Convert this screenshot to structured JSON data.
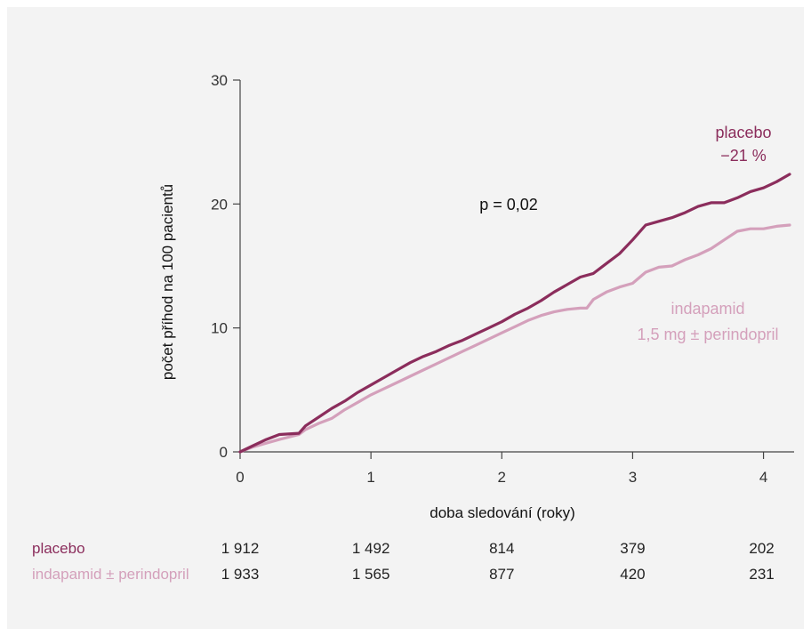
{
  "chart_data": {
    "type": "line",
    "xlabel": "doba sledování (roky)",
    "ylabel": "počet příhod na 100 pacientů",
    "xlim": [
      0,
      4.2
    ],
    "ylim": [
      0,
      30
    ],
    "xticks": [
      "0",
      "1",
      "2",
      "3",
      "4"
    ],
    "yticks": [
      "0",
      "10",
      "20",
      "30"
    ],
    "grid": false,
    "annotation_p": "p = 0,02",
    "series": [
      {
        "name": "placebo",
        "label_line2": "−21 %",
        "color": "#8b2d5c",
        "points": [
          [
            0,
            0
          ],
          [
            0.1,
            0.5
          ],
          [
            0.2,
            1.0
          ],
          [
            0.3,
            1.4
          ],
          [
            0.45,
            1.5
          ],
          [
            0.5,
            2.1
          ],
          [
            0.6,
            2.8
          ],
          [
            0.7,
            3.5
          ],
          [
            0.8,
            4.1
          ],
          [
            0.9,
            4.8
          ],
          [
            1.0,
            5.4
          ],
          [
            1.1,
            6.0
          ],
          [
            1.2,
            6.6
          ],
          [
            1.3,
            7.2
          ],
          [
            1.4,
            7.7
          ],
          [
            1.5,
            8.1
          ],
          [
            1.6,
            8.6
          ],
          [
            1.7,
            9.0
          ],
          [
            1.8,
            9.5
          ],
          [
            1.9,
            10.0
          ],
          [
            2.0,
            10.5
          ],
          [
            2.1,
            11.1
          ],
          [
            2.2,
            11.6
          ],
          [
            2.3,
            12.2
          ],
          [
            2.4,
            12.9
          ],
          [
            2.5,
            13.5
          ],
          [
            2.6,
            14.1
          ],
          [
            2.7,
            14.4
          ],
          [
            2.8,
            15.2
          ],
          [
            2.9,
            16.0
          ],
          [
            3.0,
            17.1
          ],
          [
            3.1,
            18.3
          ],
          [
            3.2,
            18.6
          ],
          [
            3.3,
            18.9
          ],
          [
            3.4,
            19.3
          ],
          [
            3.5,
            19.8
          ],
          [
            3.6,
            20.1
          ],
          [
            3.7,
            20.1
          ],
          [
            3.8,
            20.5
          ],
          [
            3.9,
            21.0
          ],
          [
            4.0,
            21.3
          ],
          [
            4.1,
            21.8
          ],
          [
            4.2,
            22.4
          ]
        ]
      },
      {
        "name": "indapamid",
        "label_line2": "1,5 mg ± perindopril",
        "color": "#d4a0bb",
        "points": [
          [
            0,
            0
          ],
          [
            0.1,
            0.4
          ],
          [
            0.2,
            0.7
          ],
          [
            0.3,
            1.0
          ],
          [
            0.45,
            1.4
          ],
          [
            0.5,
            1.8
          ],
          [
            0.6,
            2.3
          ],
          [
            0.7,
            2.7
          ],
          [
            0.8,
            3.4
          ],
          [
            0.9,
            4.0
          ],
          [
            1.0,
            4.6
          ],
          [
            1.1,
            5.1
          ],
          [
            1.2,
            5.6
          ],
          [
            1.3,
            6.1
          ],
          [
            1.4,
            6.6
          ],
          [
            1.5,
            7.1
          ],
          [
            1.6,
            7.6
          ],
          [
            1.7,
            8.1
          ],
          [
            1.8,
            8.6
          ],
          [
            1.9,
            9.1
          ],
          [
            2.0,
            9.6
          ],
          [
            2.1,
            10.1
          ],
          [
            2.2,
            10.6
          ],
          [
            2.3,
            11.0
          ],
          [
            2.4,
            11.3
          ],
          [
            2.5,
            11.5
          ],
          [
            2.6,
            11.6
          ],
          [
            2.65,
            11.6
          ],
          [
            2.7,
            12.3
          ],
          [
            2.8,
            12.9
          ],
          [
            2.9,
            13.3
          ],
          [
            3.0,
            13.6
          ],
          [
            3.1,
            14.5
          ],
          [
            3.2,
            14.9
          ],
          [
            3.3,
            15.0
          ],
          [
            3.4,
            15.5
          ],
          [
            3.5,
            15.9
          ],
          [
            3.6,
            16.4
          ],
          [
            3.7,
            17.1
          ],
          [
            3.8,
            17.8
          ],
          [
            3.9,
            18.0
          ],
          [
            4.0,
            18.0
          ],
          [
            4.1,
            18.2
          ],
          [
            4.2,
            18.3
          ]
        ]
      }
    ]
  },
  "risk_table": {
    "rows": [
      {
        "label": "placebo",
        "color": "#8b2d5c",
        "values": [
          "1 912",
          "1 492",
          "814",
          "379",
          "202"
        ]
      },
      {
        "label": "indapamid ± perindopril",
        "color": "#d4a0bb",
        "values": [
          "1 933",
          "1 565",
          "877",
          "420",
          "231"
        ]
      }
    ]
  }
}
